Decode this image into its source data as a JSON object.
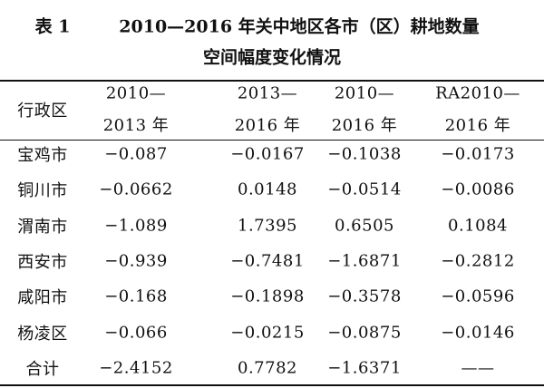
{
  "title": {
    "label": "表 1",
    "lines": [
      "2010—2016 年关中地区各市（区）耕地数量",
      "空间幅度变化情况"
    ]
  },
  "table": {
    "header": [
      [
        "行政区"
      ],
      [
        "2010—",
        "2013 年"
      ],
      [
        "2013—",
        "2016 年"
      ],
      [
        "2010—",
        "2016 年"
      ],
      [
        "RA2010—",
        "2016 年"
      ]
    ],
    "rows": [
      [
        "宝鸡市",
        "−0.087",
        "−0.0167",
        "−0.1038",
        "−0.0173"
      ],
      [
        "铜川市",
        "−0.0662",
        "0.0148",
        "−0.0514",
        "−0.0086"
      ],
      [
        "渭南市",
        "−1.089",
        "1.7395",
        "0.6505",
        "0.1084"
      ],
      [
        "西安市",
        "−0.939",
        "−0.7481",
        "−1.6871",
        "−0.2812"
      ],
      [
        "咸阳市",
        "−0.168",
        "−0.1898",
        "−0.3578",
        "−0.0596"
      ],
      [
        "杨凌区",
        "−0.066",
        "−0.0215",
        "−0.0875",
        "−0.0146"
      ],
      [
        "合计",
        "−2.4152",
        "0.7782",
        "−1.6371",
        "——"
      ]
    ]
  }
}
